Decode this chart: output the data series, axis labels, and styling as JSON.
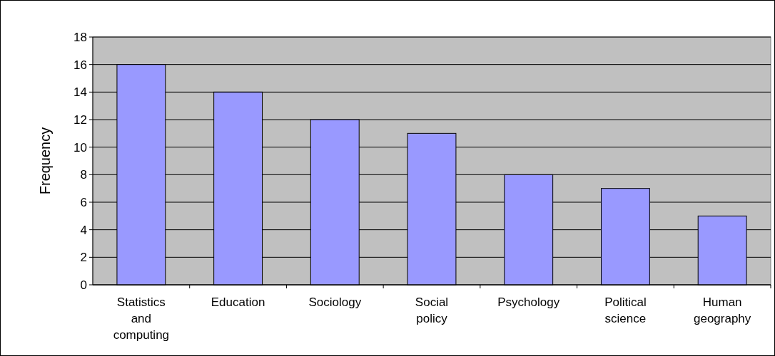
{
  "chart_data": {
    "type": "bar",
    "ylabel": "Frequency",
    "categories": [
      "Statistics and computing",
      "Education",
      "Sociology",
      "Social policy",
      "Psychology",
      "Political science",
      "Human geography"
    ],
    "values": [
      16,
      14,
      12,
      11,
      8,
      7,
      5
    ],
    "color": "#9999ff",
    "ylim": [
      0,
      18
    ],
    "yticks": [
      0,
      2,
      4,
      6,
      8,
      10,
      12,
      14,
      16,
      18
    ],
    "grid": "y"
  }
}
